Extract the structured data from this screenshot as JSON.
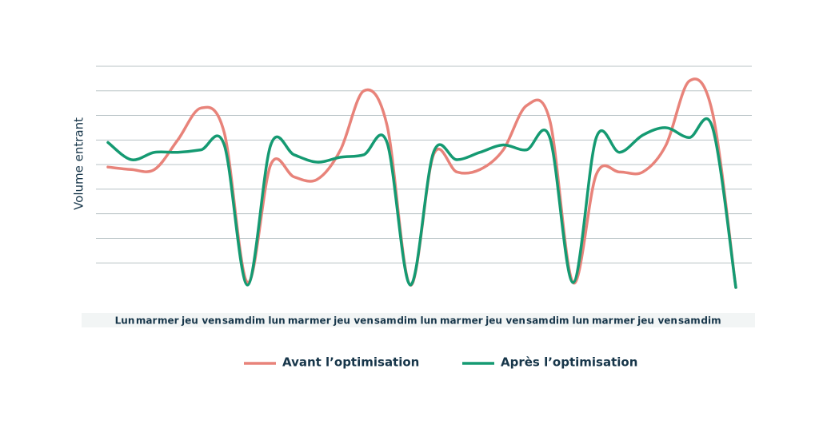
{
  "chart_data": {
    "type": "line",
    "y_label": "Volume entrant",
    "categories": [
      "Lun",
      "mar",
      "mer",
      "jeu",
      "ven",
      "sam",
      "dim",
      "lun",
      "mar",
      "mer",
      "jeu",
      "ven",
      "sam",
      "dim",
      "lun",
      "mar",
      "mer",
      "jeu",
      "ven",
      "sam",
      "dim",
      "lun",
      "mar",
      "mer",
      "jeu",
      "ven",
      "sam",
      "dim"
    ],
    "series": [
      {
        "name": "Avant l’optimisation",
        "color": "#e8837a",
        "values": [
          4.9,
          4.8,
          4.8,
          6.0,
          7.3,
          6.3,
          0.2,
          5.0,
          4.5,
          4.4,
          5.6,
          8.0,
          6.6,
          0.1,
          5.4,
          4.7,
          4.8,
          5.6,
          7.4,
          6.8,
          0.2,
          4.6,
          4.7,
          4.7,
          5.8,
          8.4,
          7.1,
          0.0
        ]
      },
      {
        "name": "Après l’optimisation",
        "color": "#159a72",
        "values": [
          5.9,
          5.2,
          5.5,
          5.5,
          5.6,
          5.8,
          0.1,
          5.8,
          5.4,
          5.1,
          5.3,
          5.4,
          5.9,
          0.1,
          5.5,
          5.2,
          5.5,
          5.8,
          5.6,
          6.1,
          0.2,
          6.1,
          5.5,
          6.2,
          6.5,
          6.1,
          6.5,
          0.0
        ]
      }
    ],
    "ylim": [
      0,
      9
    ],
    "yticks": [
      1,
      2,
      3,
      4,
      5,
      6,
      7,
      8,
      9
    ],
    "grid": true
  }
}
